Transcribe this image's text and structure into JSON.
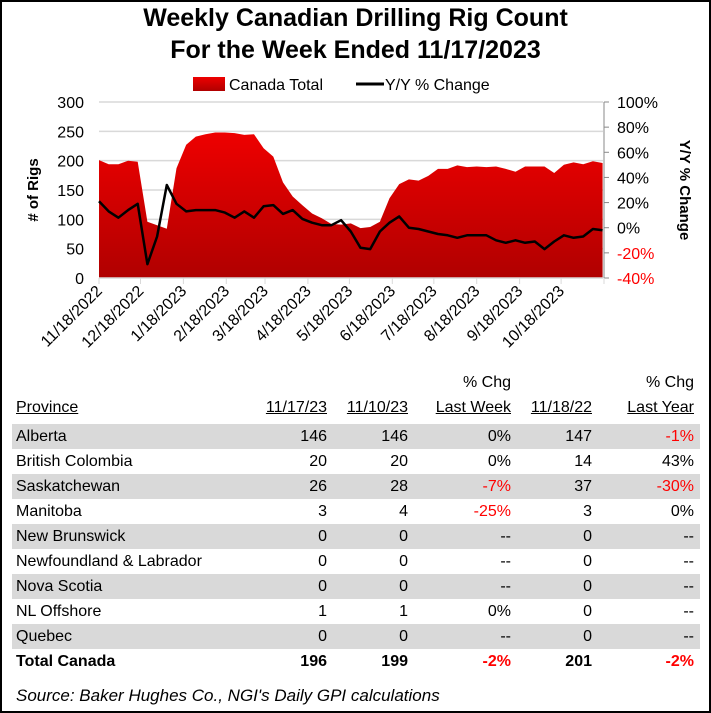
{
  "chart_data": {
    "type": "area+line",
    "title": "Weekly Canadian Drilling Rig Count",
    "subtitle": "For the Week Ended 11/17/2023",
    "ylabel": "# of Rigs",
    "y2label": "Y/Y % Change",
    "ylim": [
      0,
      300
    ],
    "yticks": [
      "300",
      "250",
      "200",
      "150",
      "100",
      "50",
      "0"
    ],
    "y2lim": [
      -40,
      100
    ],
    "y2ticks": [
      "100%",
      "80%",
      "60%",
      "40%",
      "20%",
      "0%",
      "-20%",
      "-40%"
    ],
    "xticks": [
      "11/18/2022",
      "12/18/2022",
      "1/18/2023",
      "2/18/2023",
      "3/18/2023",
      "4/18/2023",
      "5/18/2023",
      "6/18/2023",
      "7/18/2023",
      "8/18/2023",
      "9/18/2023",
      "10/18/2023"
    ],
    "xlim": [
      "2022-11-18",
      "2023-11-18"
    ],
    "grid": true,
    "legend_position": "top",
    "x": [
      "2022-11-18",
      "2022-11-25",
      "2022-12-02",
      "2022-12-09",
      "2022-12-16",
      "2022-12-23",
      "2022-12-30",
      "2023-01-06",
      "2023-01-13",
      "2023-01-20",
      "2023-01-27",
      "2023-02-03",
      "2023-02-10",
      "2023-02-17",
      "2023-02-24",
      "2023-03-03",
      "2023-03-10",
      "2023-03-17",
      "2023-03-24",
      "2023-03-31",
      "2023-04-07",
      "2023-04-14",
      "2023-04-21",
      "2023-04-28",
      "2023-05-05",
      "2023-05-12",
      "2023-05-19",
      "2023-05-26",
      "2023-06-02",
      "2023-06-09",
      "2023-06-16",
      "2023-06-23",
      "2023-06-30",
      "2023-07-07",
      "2023-07-14",
      "2023-07-21",
      "2023-07-28",
      "2023-08-04",
      "2023-08-11",
      "2023-08-18",
      "2023-08-25",
      "2023-09-01",
      "2023-09-08",
      "2023-09-15",
      "2023-09-22",
      "2023-09-29",
      "2023-10-06",
      "2023-10-13",
      "2023-10-20",
      "2023-10-27",
      "2023-11-03",
      "2023-11-10",
      "2023-11-17"
    ],
    "series": [
      {
        "name": "Canada Total",
        "type": "area",
        "axis": "left",
        "color_top": "#ee0000",
        "color_bottom": "#b00000",
        "values": [
          201,
          194,
          194,
          200,
          198,
          96,
          90,
          84,
          187,
          227,
          241,
          245,
          248,
          248,
          247,
          244,
          245,
          221,
          207,
          163,
          139,
          124,
          110,
          102,
          92,
          91,
          93,
          85,
          87,
          96,
          136,
          160,
          168,
          166,
          174,
          186,
          186,
          192,
          189,
          190,
          189,
          190,
          186,
          181,
          190,
          190,
          190,
          179,
          193,
          197,
          194,
          199,
          196
        ]
      },
      {
        "name": "Y/Y % Change",
        "type": "line",
        "axis": "right",
        "color": "#000000",
        "values": [
          21,
          13,
          8,
          14,
          19,
          -29,
          -7,
          34,
          19,
          13,
          14,
          14,
          14,
          12,
          8,
          13,
          8,
          17,
          18,
          11,
          14,
          7,
          4,
          2,
          2,
          6,
          -3,
          -16,
          -17,
          -3,
          4,
          9,
          0,
          -1,
          -3,
          -5,
          -6,
          -8,
          -6,
          -6,
          -6,
          -10,
          -12,
          -10,
          -12,
          -11,
          -17,
          -11,
          -6,
          -8,
          -7,
          -1,
          -2
        ]
      }
    ]
  },
  "colors": {
    "negative": "#ff0000",
    "row_shade": "#d9d9d9",
    "grid": "#d9d9d9"
  },
  "table": {
    "headers": {
      "province": "Province",
      "current": "11/17/23",
      "prior_week": "11/10/23",
      "chg_week_1": "% Chg",
      "chg_week_2": "Last Week",
      "prior_year": "11/18/22",
      "chg_year_1": "% Chg",
      "chg_year_2": "Last Year"
    },
    "rows": [
      {
        "province": "Alberta",
        "current": "146",
        "prior_week": "146",
        "chg_week": "0%",
        "prior_year": "147",
        "chg_year": "-1%"
      },
      {
        "province": "British Colombia",
        "current": "20",
        "prior_week": "20",
        "chg_week": "0%",
        "prior_year": "14",
        "chg_year": "43%"
      },
      {
        "province": "Saskatchewan",
        "current": "26",
        "prior_week": "28",
        "chg_week": "-7%",
        "prior_year": "37",
        "chg_year": "-30%"
      },
      {
        "province": "Manitoba",
        "current": "3",
        "prior_week": "4",
        "chg_week": "-25%",
        "prior_year": "3",
        "chg_year": "0%"
      },
      {
        "province": "New Brunswick",
        "current": "0",
        "prior_week": "0",
        "chg_week": "--",
        "prior_year": "0",
        "chg_year": "--"
      },
      {
        "province": "Newfoundland & Labrador",
        "current": "0",
        "prior_week": "0",
        "chg_week": "--",
        "prior_year": "0",
        "chg_year": "--"
      },
      {
        "province": "Nova Scotia",
        "current": "0",
        "prior_week": "0",
        "chg_week": "--",
        "prior_year": "0",
        "chg_year": "--"
      },
      {
        "province": "NL Offshore",
        "current": "1",
        "prior_week": "1",
        "chg_week": "0%",
        "prior_year": "0",
        "chg_year": "--"
      },
      {
        "province": "Quebec",
        "current": "0",
        "prior_week": "0",
        "chg_week": "--",
        "prior_year": "0",
        "chg_year": "--"
      }
    ],
    "total": {
      "province": "Total Canada",
      "current": "196",
      "prior_week": "199",
      "chg_week": "-2%",
      "prior_year": "201",
      "chg_year": "-2%"
    }
  },
  "source": "Source: Baker Hughes Co., NGI's Daily GPI calculations"
}
